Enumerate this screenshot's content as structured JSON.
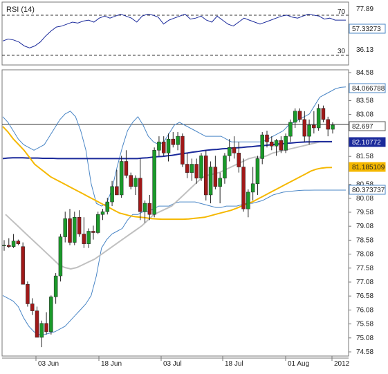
{
  "rsi_panel": {
    "label": "RSI (14)",
    "level_high": "70",
    "level_low": "30",
    "current_value": "57.33273",
    "right_axis_ticks": [
      "77.89",
      "36.13"
    ]
  },
  "price_panel": {
    "y_ticks": [
      "84.58",
      "83.58",
      "83.08",
      "82.58",
      "81.58",
      "80.58",
      "80.08",
      "79.58",
      "79.08",
      "78.58",
      "78.08",
      "77.58",
      "77.08",
      "76.58",
      "76.08",
      "75.58",
      "75.08",
      "74.58"
    ],
    "x_ticks": [
      "03 Jun",
      "18 Jun",
      "03 Jul",
      "18 Jul",
      "01 Aug",
      "2012"
    ],
    "badges": [
      {
        "name": "upper-band",
        "text": "84.066788",
        "fill": "#ffffff",
        "border": "#4a86c6"
      },
      {
        "name": "last-price",
        "text": "82.697",
        "fill": "#ffffff",
        "border": "#555555"
      },
      {
        "name": "ma-blue",
        "text": "82.10772",
        "fill": "#1b2a9b",
        "border": "#1b2a9b",
        "color": "#ffffff"
      },
      {
        "name": "ma-yellow",
        "text": "81.185109",
        "fill": "#f5b800",
        "border": "#f5b800"
      },
      {
        "name": "lower-band",
        "text": "80.373737",
        "fill": "#ffffff",
        "border": "#4a86c6"
      }
    ]
  },
  "colors": {
    "bullish": "#1a9a2a",
    "bearish": "#a01818",
    "bollinger": "#4a86c6",
    "ma_blue": "#1b2a9b",
    "ma_yellow": "#f5b800",
    "ma_gray": "#c0c0c0",
    "rsi_line": "#1b2a9b"
  },
  "chart_data": {
    "type": "candlestick",
    "series": [
      {
        "name": "price",
        "kind": "candles",
        "candles": [
          [
            78.4,
            78.58,
            78.2,
            78.4
          ],
          [
            78.4,
            78.65,
            78.3,
            78.35
          ],
          [
            78.35,
            78.8,
            78.3,
            78.55
          ],
          [
            78.55,
            78.6,
            78.4,
            78.45
          ],
          [
            78.35,
            78.5,
            77.0,
            77.0
          ],
          [
            77.0,
            77.1,
            76.2,
            76.3
          ],
          [
            76.3,
            76.5,
            75.9,
            76.05
          ],
          [
            76.05,
            76.2,
            75.1,
            75.1
          ],
          [
            75.1,
            75.7,
            74.75,
            75.6
          ],
          [
            75.6,
            76.0,
            75.2,
            75.3
          ],
          [
            75.3,
            76.6,
            75.2,
            76.55
          ],
          [
            76.55,
            77.4,
            76.3,
            77.3
          ],
          [
            77.3,
            78.8,
            77.1,
            78.7
          ],
          [
            78.7,
            79.6,
            78.5,
            79.35
          ],
          [
            79.35,
            79.7,
            78.4,
            78.5
          ],
          [
            78.5,
            79.6,
            78.4,
            79.4
          ],
          [
            79.4,
            79.65,
            78.7,
            78.8
          ],
          [
            78.8,
            79.4,
            78.3,
            78.45
          ],
          [
            78.45,
            79.0,
            78.3,
            78.9
          ],
          [
            78.9,
            79.1,
            78.6,
            78.85
          ],
          [
            78.85,
            79.6,
            78.8,
            79.5
          ],
          [
            79.5,
            79.7,
            79.3,
            79.6
          ],
          [
            79.6,
            80.1,
            79.5,
            79.95
          ],
          [
            79.95,
            80.7,
            79.8,
            80.5
          ],
          [
            80.5,
            81.1,
            80.2,
            80.2
          ],
          [
            80.2,
            81.6,
            80.1,
            81.4
          ],
          [
            81.4,
            81.8,
            80.8,
            80.9
          ],
          [
            80.9,
            81.0,
            80.4,
            80.5
          ],
          [
            80.5,
            80.9,
            80.2,
            80.8
          ],
          [
            80.8,
            81.5,
            79.3,
            79.6
          ],
          [
            79.6,
            80.0,
            79.2,
            79.9
          ],
          [
            79.9,
            80.2,
            79.3,
            79.5
          ],
          [
            79.5,
            81.9,
            79.4,
            81.8
          ],
          [
            81.8,
            82.3,
            81.6,
            82.1
          ],
          [
            82.1,
            82.3,
            81.6,
            81.7
          ],
          [
            81.7,
            82.4,
            81.4,
            82.2
          ],
          [
            82.2,
            82.45,
            81.9,
            82.0
          ],
          [
            82.0,
            82.45,
            81.8,
            82.3
          ],
          [
            82.3,
            82.4,
            81.2,
            81.3
          ],
          [
            81.3,
            81.7,
            80.8,
            81.0
          ],
          [
            81.0,
            81.5,
            80.7,
            81.3
          ],
          [
            81.3,
            81.5,
            80.6,
            80.8
          ],
          [
            80.8,
            81.7,
            80.7,
            81.6
          ],
          [
            81.6,
            81.8,
            80.0,
            80.2
          ],
          [
            80.2,
            81.4,
            79.9,
            81.2
          ],
          [
            81.2,
            81.6,
            80.4,
            80.5
          ],
          [
            80.5,
            81.0,
            79.9,
            80.8
          ],
          [
            80.8,
            81.7,
            80.6,
            81.6
          ],
          [
            81.6,
            82.2,
            81.4,
            81.9
          ],
          [
            81.9,
            82.3,
            81.5,
            81.7
          ],
          [
            81.7,
            82.1,
            81.0,
            81.2
          ],
          [
            81.2,
            81.5,
            79.6,
            79.7
          ],
          [
            79.7,
            80.4,
            79.4,
            80.3
          ],
          [
            80.3,
            81.2,
            80.0,
            80.6
          ],
          [
            80.6,
            81.6,
            80.2,
            81.5
          ],
          [
            81.5,
            82.45,
            81.3,
            82.35
          ],
          [
            82.35,
            82.5,
            81.9,
            82.1
          ],
          [
            82.1,
            82.3,
            81.8,
            81.95
          ],
          [
            81.95,
            82.2,
            81.6,
            82.15
          ],
          [
            82.15,
            82.3,
            81.7,
            81.8
          ],
          [
            81.8,
            82.4,
            81.7,
            82.3
          ],
          [
            82.3,
            82.9,
            82.1,
            82.8
          ],
          [
            82.8,
            83.3,
            82.6,
            83.2
          ],
          [
            83.2,
            83.3,
            82.8,
            82.9
          ],
          [
            82.9,
            83.2,
            82.1,
            82.3
          ],
          [
            82.3,
            82.9,
            82.0,
            82.7
          ],
          [
            82.7,
            83.2,
            82.4,
            82.6
          ],
          [
            82.6,
            83.45,
            82.5,
            83.3
          ],
          [
            83.3,
            83.4,
            82.8,
            82.9
          ],
          [
            82.9,
            83.0,
            82.3,
            82.55
          ],
          [
            82.55,
            82.8,
            82.4,
            82.7
          ]
        ]
      },
      {
        "name": "upper-band",
        "kind": "line",
        "values": [
          83.0,
          82.8,
          82.5,
          82.2,
          82.0,
          81.9,
          81.8,
          81.9,
          82.0,
          82.3,
          82.6,
          82.9,
          83.1,
          83.2,
          83.0,
          82.5,
          81.8,
          80.6,
          79.9,
          79.8,
          79.9,
          80.4,
          81.2,
          81.9,
          82.5,
          82.8,
          83.0,
          82.7,
          82.3,
          82.1,
          82.0,
          82.1,
          82.4,
          82.7,
          82.8,
          82.7,
          82.6,
          82.5,
          82.4,
          82.3,
          82.3,
          82.3,
          82.3,
          82.2,
          82.1,
          82.1,
          82.1,
          82.1,
          82.1,
          82.1,
          82.1,
          82.2,
          82.3,
          82.4,
          82.5,
          82.7,
          82.8,
          82.9,
          83.0,
          83.1,
          83.4,
          83.7,
          83.8,
          83.9,
          84.0,
          84.05,
          84.066
        ]
      },
      {
        "name": "lower-band",
        "kind": "line",
        "values": [
          76.6,
          76.5,
          76.4,
          76.2,
          75.8,
          75.5,
          75.3,
          75.2,
          75.2,
          75.25,
          75.3,
          75.4,
          75.5,
          75.7,
          75.9,
          76.1,
          76.3,
          76.6,
          77.3,
          78.3,
          78.6,
          78.8,
          78.9,
          79.0,
          79.3,
          79.5,
          79.5,
          79.6,
          79.6,
          79.7,
          79.8,
          79.8,
          79.8,
          79.9,
          79.95,
          79.95,
          79.95,
          79.95,
          79.9,
          79.85,
          79.8,
          79.75,
          79.75,
          79.8,
          79.8,
          79.8,
          79.85,
          79.9,
          79.9,
          79.95,
          80.0,
          80.1,
          80.2,
          80.25,
          80.3,
          80.32,
          80.34,
          80.36,
          80.37,
          80.37,
          80.373,
          80.373,
          80.373,
          80.373,
          80.373,
          80.373,
          80.373
        ]
      },
      {
        "name": "ma-gray",
        "kind": "line",
        "values": [
          79.5,
          79.3,
          79.1,
          78.9,
          78.7,
          78.5,
          78.3,
          78.1,
          77.9,
          77.7,
          77.6,
          77.55,
          77.6,
          77.7,
          77.8,
          77.9,
          78.05,
          78.2,
          78.35,
          78.5,
          78.65,
          78.8,
          78.95,
          79.1,
          79.3,
          79.5,
          79.6,
          79.7,
          79.8,
          80.0,
          80.2,
          80.4,
          80.6,
          80.8,
          80.9,
          80.95,
          81.0,
          81.1,
          81.2,
          81.3,
          81.4,
          81.5,
          81.55,
          81.55,
          81.6,
          81.7,
          81.75,
          81.8,
          81.85,
          81.9,
          81.95,
          82.0,
          82.05,
          82.1,
          82.1,
          82.1
        ]
      },
      {
        "name": "ma-blue",
        "kind": "line",
        "values": [
          81.5,
          81.52,
          81.53,
          81.53,
          81.53,
          81.52,
          81.52,
          81.52,
          81.51,
          81.51,
          81.51,
          81.5,
          81.5,
          81.5,
          81.5,
          81.5,
          81.5,
          81.5,
          81.5,
          81.5,
          81.5,
          81.5,
          81.5,
          81.5,
          81.5,
          81.5,
          81.5,
          81.5,
          81.52,
          81.53,
          81.55,
          81.57,
          81.58,
          81.6,
          81.62,
          81.65,
          81.68,
          81.7,
          81.73,
          81.75,
          81.78,
          81.8,
          81.82,
          81.83,
          81.85,
          81.86,
          81.88,
          81.89,
          81.9,
          81.92,
          81.93,
          81.95,
          81.96,
          81.98,
          82.0,
          82.02,
          82.03,
          82.05,
          82.06,
          82.08,
          82.09,
          82.1,
          82.1,
          82.108,
          82.108,
          82.108,
          82.108
        ]
      },
      {
        "name": "ma-yellow",
        "kind": "line",
        "values": [
          82.65,
          82.45,
          82.2,
          82.0,
          81.8,
          81.55,
          81.3,
          81.15,
          81.0,
          80.85,
          80.75,
          80.65,
          80.55,
          80.45,
          80.35,
          80.25,
          80.15,
          80.05,
          79.95,
          79.85,
          79.75,
          79.65,
          79.55,
          79.5,
          79.45,
          79.42,
          79.4,
          79.38,
          79.35,
          79.34,
          79.33,
          79.33,
          79.33,
          79.33,
          79.33,
          79.34,
          79.36,
          79.38,
          79.4,
          79.45,
          79.5,
          79.55,
          79.6,
          79.65,
          79.72,
          79.8,
          79.88,
          79.95,
          80.05,
          80.15,
          80.25,
          80.35,
          80.45,
          80.55,
          80.65,
          80.75,
          80.85,
          80.95,
          81.05,
          81.12,
          81.16,
          81.18,
          81.185
        ]
      },
      {
        "name": "rsi",
        "kind": "line",
        "values": [
          45,
          47,
          46,
          44,
          40,
          38,
          40,
          44,
          50,
          55,
          59,
          60,
          62,
          64,
          63,
          65,
          66,
          64,
          68,
          70,
          68,
          70,
          72,
          70,
          68,
          64,
          70,
          72,
          71,
          69,
          62,
          66,
          68,
          70,
          72,
          67,
          68,
          70,
          66,
          64,
          70,
          66,
          62,
          60,
          64,
          68,
          66,
          64,
          62,
          64,
          66,
          68,
          70,
          71,
          69,
          68,
          70,
          72,
          71,
          70,
          67,
          68,
          66,
          66,
          66
        ]
      }
    ],
    "ylim": [
      74.58,
      84.58
    ],
    "rsi_ylim": [
      36.13,
      77.89
    ]
  }
}
